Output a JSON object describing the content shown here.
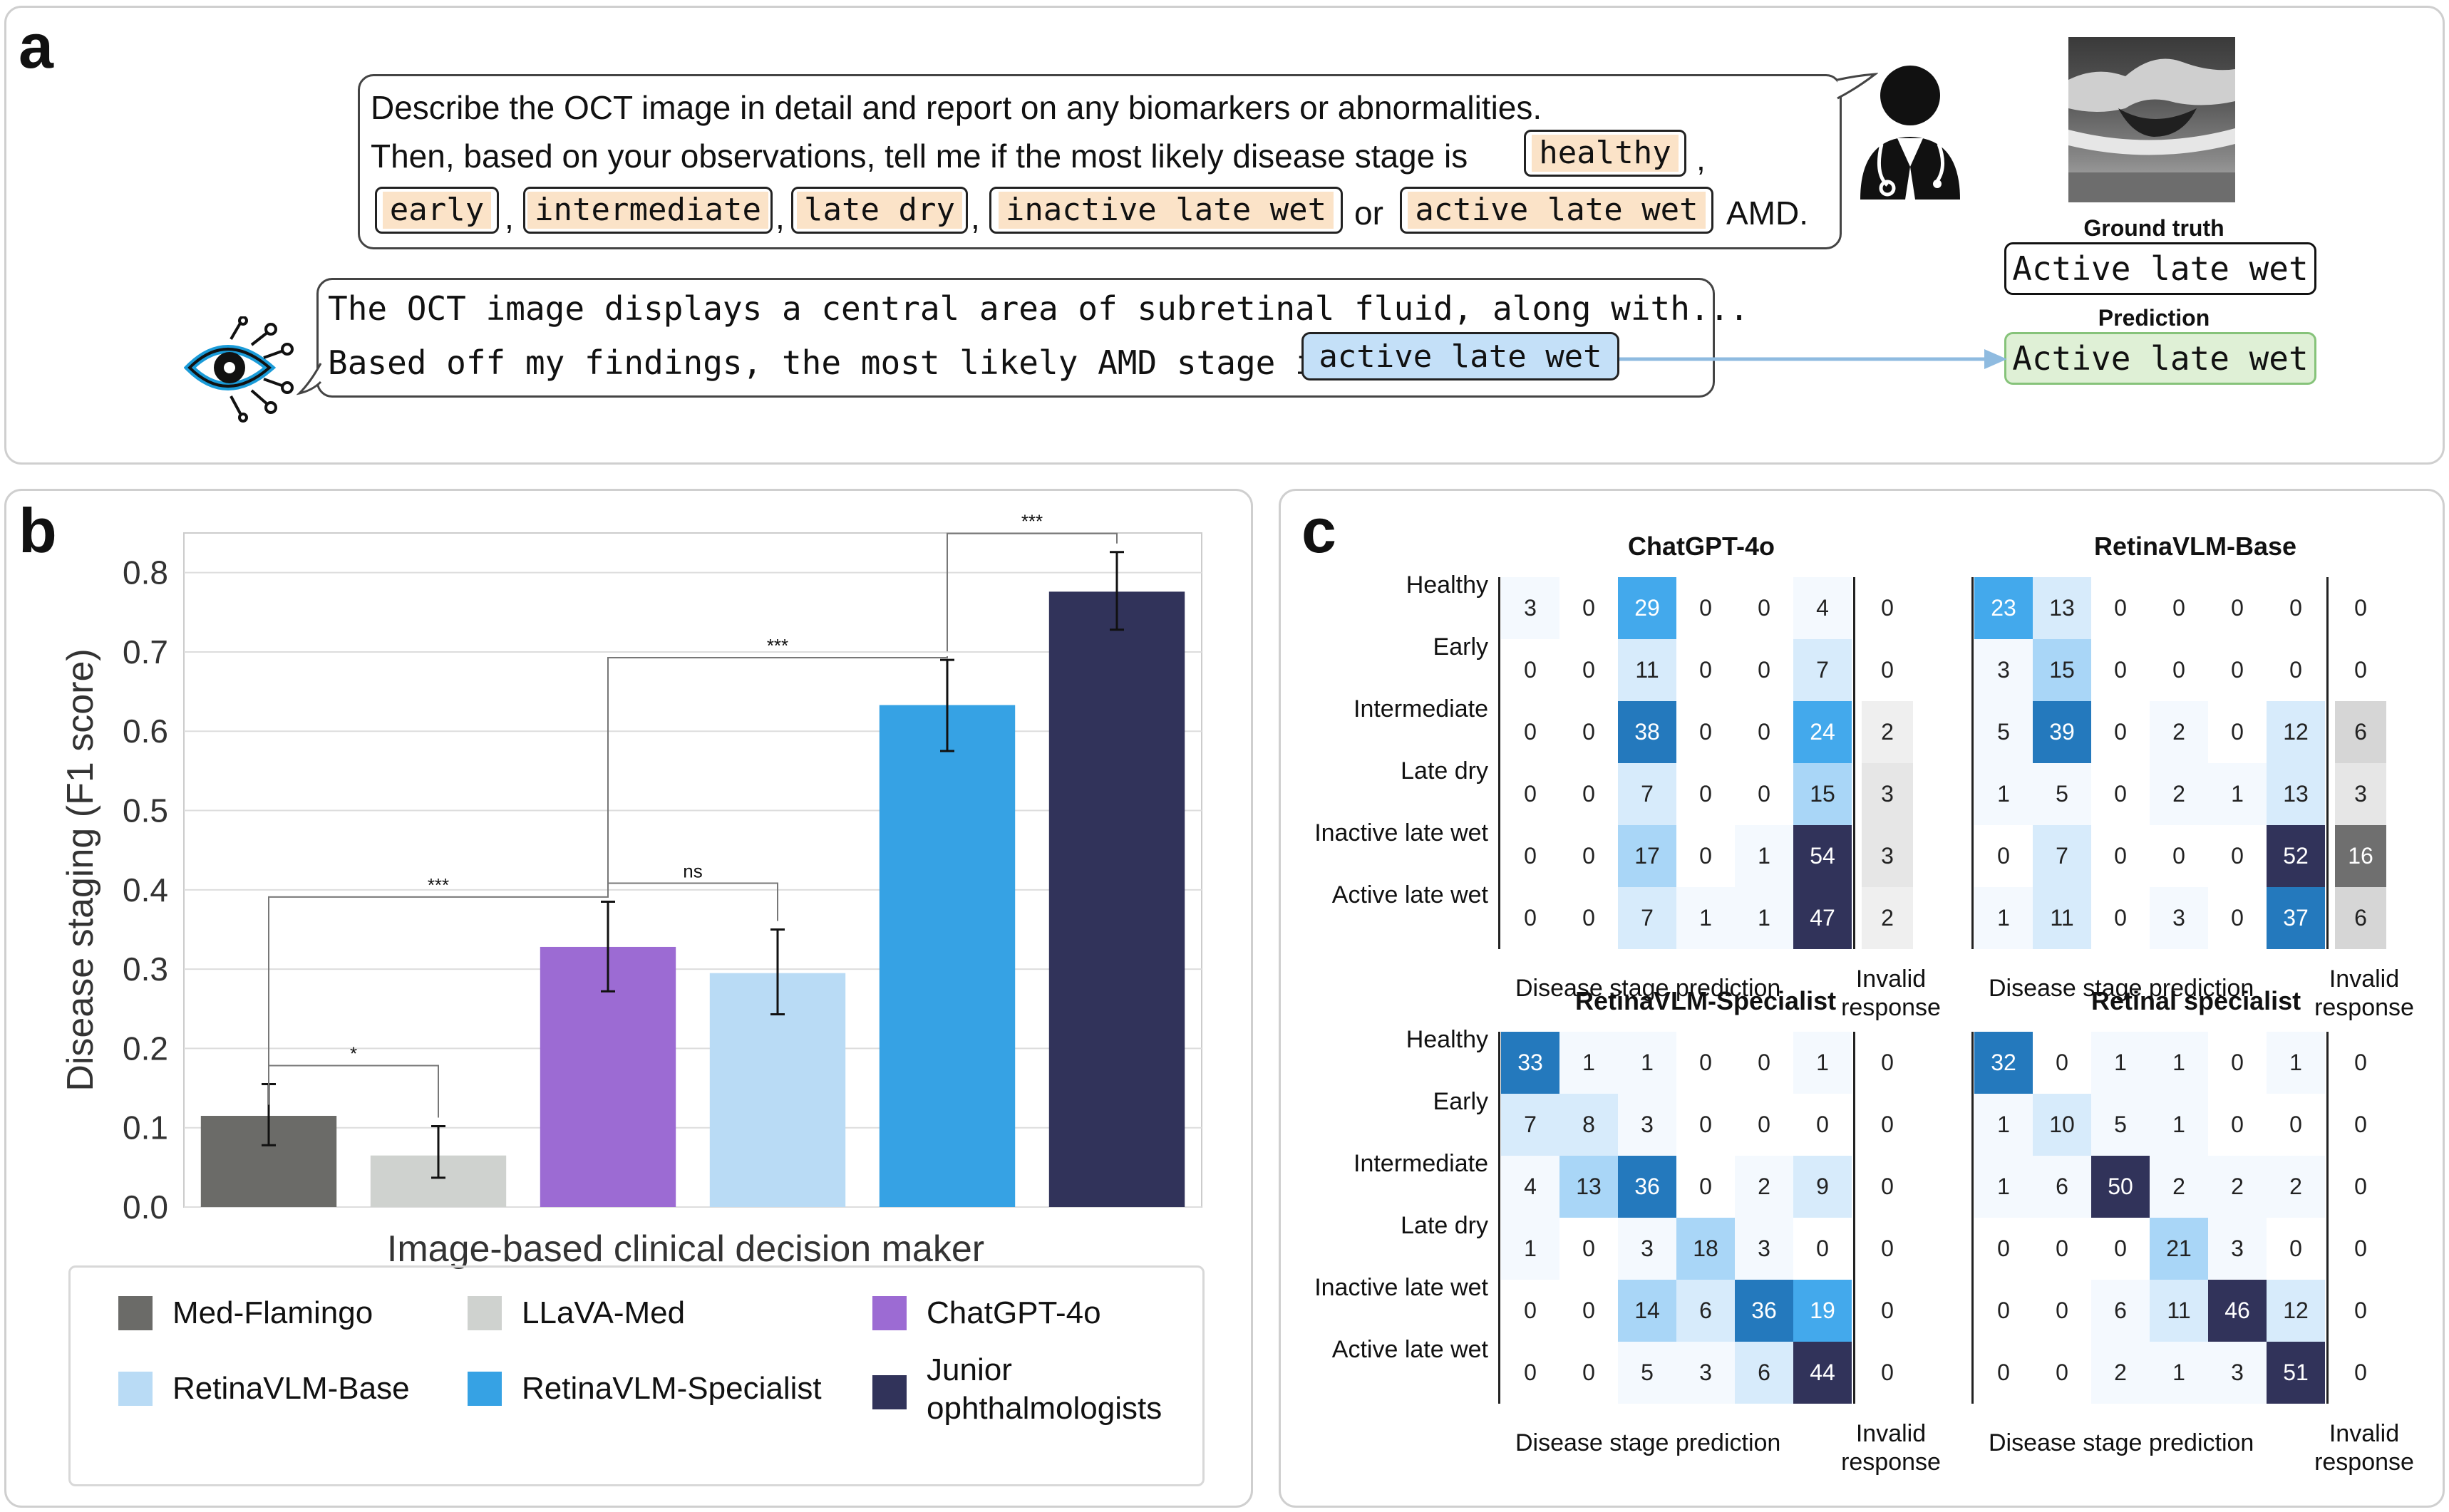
{
  "panel_a": {
    "label": "a",
    "prompt_line1": "Describe the OCT image in detail and report on any biomarkers or abnormalities.",
    "prompt_line2": "Then, based on your observations, tell me if the most likely disease stage is",
    "options": [
      "healthy",
      "early",
      "intermediate",
      "late dry",
      "inactive late wet",
      "active late wet"
    ],
    "comma": ",",
    "or_word": "or",
    "amd_suffix": "AMD.",
    "response_line1": "The OCT image displays a central area of subretinal fluid, along with...",
    "response_line2": "Based off my findings, the most likely AMD stage is",
    "response_answer": "active late wet",
    "ground_truth_label": "Ground truth",
    "ground_truth_value": "Active late wet",
    "prediction_label": "Prediction",
    "prediction_value": "Active late wet"
  },
  "panel_b": {
    "label": "b",
    "legend": [
      {
        "name": "Med-Flamingo",
        "color": "#6b6b68"
      },
      {
        "name": "LLaVA-Med",
        "color": "#cfd2cf"
      },
      {
        "name": "ChatGPT-4o",
        "color": "#9c6bd3"
      },
      {
        "name": "RetinaVLM-Base",
        "color": "#b9dbf5"
      },
      {
        "name": "RetinaVLM-Specialist",
        "color": "#36a2e4"
      },
      {
        "name": "Junior",
        "color": "#31335a"
      }
    ],
    "legend_extra_line": "ophthalmologists",
    "sig_labels": [
      "*",
      "***",
      "ns",
      "***",
      "***"
    ]
  },
  "chart_data": {
    "type": "bar",
    "title": "",
    "xlabel": "Image-based clinical decision maker",
    "ylabel": "Disease staging (F1 score)",
    "ylim": [
      0,
      0.85
    ],
    "yticks": [
      "0.0",
      "0.1",
      "0.2",
      "0.3",
      "0.4",
      "0.5",
      "0.6",
      "0.7",
      "0.8"
    ],
    "categories": [
      "Med-Flamingo",
      "LLaVA-Med",
      "ChatGPT-4o",
      "RetinaVLM-Base",
      "RetinaVLM-Specialist",
      "Junior ophthalmologists"
    ],
    "values": [
      0.115,
      0.065,
      0.328,
      0.295,
      0.633,
      0.776
    ],
    "err_low": [
      0.078,
      0.037,
      0.272,
      0.243,
      0.575,
      0.728
    ],
    "err_high": [
      0.155,
      0.102,
      0.385,
      0.35,
      0.69,
      0.826
    ],
    "colors": [
      "#6b6b68",
      "#cfd2cf",
      "#9c6bd3",
      "#b9dbf5",
      "#36a2e4",
      "#31335a"
    ],
    "significance": [
      {
        "from": 0,
        "to": 1,
        "label": "*"
      },
      {
        "from": 0,
        "to": 2,
        "label": "***"
      },
      {
        "from": 2,
        "to": 3,
        "label": "ns"
      },
      {
        "from": 2,
        "to": 4,
        "label": "***"
      },
      {
        "from": 4,
        "to": 5,
        "label": "***"
      }
    ]
  },
  "panel_c": {
    "label": "c",
    "row_labels": [
      "Healthy",
      "Early",
      "Intermediate",
      "Late dry",
      "Inactive late wet",
      "Active late wet"
    ],
    "x_note": "Disease stage prediction",
    "invalid_line1": "Invalid",
    "invalid_line2": "response",
    "matrices": [
      {
        "title": "ChatGPT-4o",
        "values": [
          [
            3,
            0,
            29,
            0,
            0,
            4
          ],
          [
            0,
            0,
            11,
            0,
            0,
            7
          ],
          [
            0,
            0,
            38,
            0,
            0,
            24
          ],
          [
            0,
            0,
            7,
            0,
            0,
            15
          ],
          [
            0,
            0,
            17,
            0,
            1,
            54
          ],
          [
            0,
            0,
            7,
            1,
            1,
            47
          ]
        ],
        "invalid": [
          0,
          0,
          2,
          3,
          3,
          2
        ]
      },
      {
        "title": "RetinaVLM-Base",
        "values": [
          [
            23,
            13,
            0,
            0,
            0,
            0
          ],
          [
            3,
            15,
            0,
            0,
            0,
            0
          ],
          [
            5,
            39,
            0,
            2,
            0,
            12
          ],
          [
            1,
            5,
            0,
            2,
            1,
            13
          ],
          [
            0,
            7,
            0,
            0,
            0,
            52
          ],
          [
            1,
            11,
            0,
            3,
            0,
            37
          ]
        ],
        "invalid": [
          0,
          0,
          6,
          3,
          16,
          6
        ]
      },
      {
        "title": "RetinaVLM-Specialist",
        "values": [
          [
            33,
            1,
            1,
            0,
            0,
            1
          ],
          [
            7,
            8,
            3,
            0,
            0,
            0
          ],
          [
            4,
            13,
            36,
            0,
            2,
            9
          ],
          [
            1,
            0,
            3,
            18,
            3,
            0
          ],
          [
            0,
            0,
            14,
            6,
            36,
            19
          ],
          [
            0,
            0,
            5,
            3,
            6,
            44
          ]
        ],
        "invalid": [
          0,
          0,
          0,
          0,
          0,
          0
        ]
      },
      {
        "title": "Retinal specialist",
        "values": [
          [
            32,
            0,
            1,
            1,
            0,
            1
          ],
          [
            1,
            10,
            5,
            1,
            0,
            0
          ],
          [
            1,
            6,
            50,
            2,
            2,
            2
          ],
          [
            0,
            0,
            0,
            21,
            3,
            0
          ],
          [
            0,
            0,
            6,
            11,
            46,
            12
          ],
          [
            0,
            0,
            2,
            1,
            3,
            51
          ]
        ],
        "invalid": [
          0,
          0,
          0,
          0,
          0,
          0
        ]
      }
    ]
  }
}
